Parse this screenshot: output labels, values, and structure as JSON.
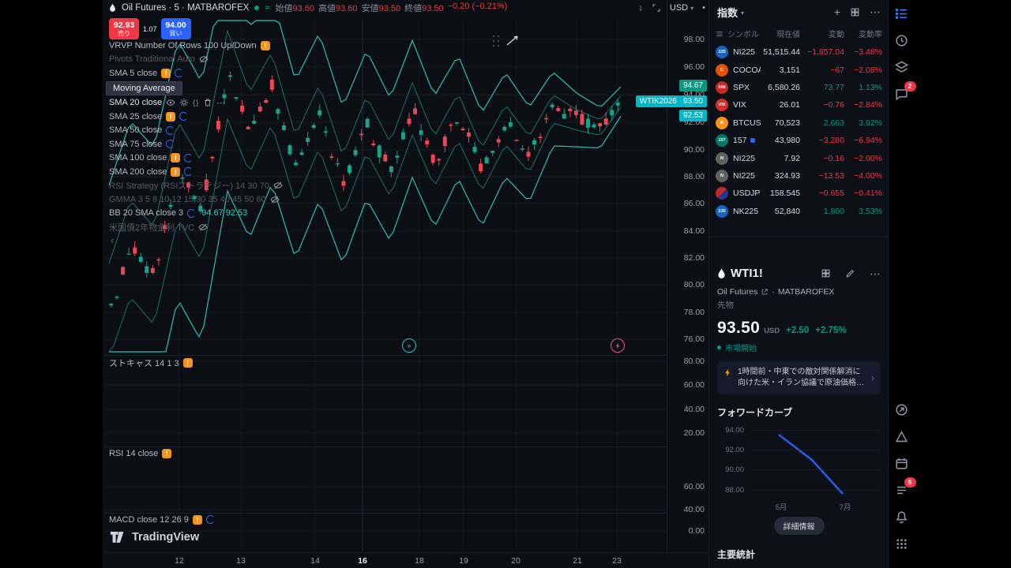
{
  "topbar": {
    "symbol_title": "Oil Futures · 5 · MATBAROFEX",
    "ohlc": {
      "open_label": "始値",
      "open": "93.60",
      "high_label": "高値",
      "high": "93.60",
      "low_label": "安値",
      "low": "93.50",
      "close_label": "終値",
      "close": "93.50",
      "change": "−0.20 (−0.21%)"
    },
    "currency": "USD"
  },
  "trade": {
    "sell_price": "92.93",
    "sell_label": "売り",
    "spread": "1.07",
    "buy_price": "94.00",
    "buy_label": "買い"
  },
  "legend": {
    "rows": [
      {
        "label": "VRVP Number Of Rows 100 Up/Down",
        "icons": [
          "alert"
        ]
      },
      {
        "label": "Pivots Traditional Auto",
        "style": "dim",
        "icons": [
          "eyeoff"
        ]
      },
      {
        "label": "SMA 5 close",
        "icons": [
          "alert",
          "spinner"
        ]
      },
      {
        "label": "Moving Average",
        "style": "highlight"
      },
      {
        "label": "SMA 20 close",
        "style": "active",
        "icons": [
          "eye",
          "gear",
          "code",
          "trash",
          "more"
        ]
      },
      {
        "label": "SMA 25 close",
        "icons": [
          "alert",
          "spinner"
        ]
      },
      {
        "label": "SMA 50 close",
        "icons": [
          "spinner"
        ]
      },
      {
        "label": "SMA 75 close",
        "icons": [
          "spinner"
        ]
      },
      {
        "label": "SMA 100 close",
        "icons": [
          "alert",
          "spinner"
        ]
      },
      {
        "label": "SMA 200 close",
        "icons": [
          "alert",
          "spinner"
        ]
      },
      {
        "label": "RSI Strategy (RSIストラテジー) 14 30 70",
        "style": "dim",
        "icons": [
          "eyeoff"
        ]
      },
      {
        "label": "GMMA 3 5 8 10 12 15 30 35 40 45 50 60",
        "style": "dim",
        "icons": [
          "eyeoff"
        ]
      },
      {
        "label": "BB 20 SMA close 3",
        "icons": [
          "spinner"
        ],
        "values": "94.67  92.53"
      },
      {
        "label": "米国債2年物金利  TVC",
        "style": "dim",
        "icons": [
          "eyeoff"
        ]
      }
    ],
    "panes": [
      {
        "label": "ストキャス 14 1 3",
        "icons": [
          "alert"
        ]
      },
      {
        "label": "RSI 14 close",
        "icons": [
          "alert"
        ]
      },
      {
        "label": "MACD close 12 26 9",
        "icons": [
          "alert",
          "spinner"
        ]
      }
    ]
  },
  "chart": {
    "price_ticks": [
      "98.00",
      "96.00",
      "94.00",
      "92.00",
      "90.00",
      "88.00",
      "86.00",
      "84.00",
      "82.00",
      "80.00",
      "78.00",
      "76.00"
    ],
    "stoch_ticks": [
      "80.00",
      "60.00",
      "40.00",
      "20.00"
    ],
    "rsi_ticks": [
      "60.00",
      "40.00"
    ],
    "macd_ticks": [
      "0.00"
    ],
    "time_ticks": [
      {
        "label": "12"
      },
      {
        "label": "13"
      },
      {
        "label": "14"
      },
      {
        "label": "16",
        "active": true
      },
      {
        "label": "18"
      },
      {
        "label": "19"
      },
      {
        "label": "20"
      },
      {
        "label": "21"
      },
      {
        "label": "23"
      }
    ],
    "labels": {
      "band_upper": "94.67",
      "contract": "WTIK2026",
      "last": "93.50",
      "band_lower": "92.53"
    },
    "colors": {
      "up": "#18a38c",
      "down": "#ef4655",
      "band": "#2dd4c8",
      "accent": "#2962ff"
    }
  },
  "logo": {
    "text": "TradingView"
  },
  "watchlist": {
    "title": "指数",
    "columns": [
      "シンボル",
      "現在値",
      "変動",
      "変動率"
    ],
    "rows": [
      {
        "icon": "225",
        "icon_bg": "#1565c0",
        "name": "NI225",
        "value": "51,515.44",
        "change": "−1,857.04",
        "pct": "−3.48%",
        "dir": "down"
      },
      {
        "icon": "C",
        "icon_bg": "#e65100",
        "name": "COCOA",
        "value": "3,151",
        "change": "−67",
        "pct": "−2.08%",
        "dir": "down"
      },
      {
        "icon": "500",
        "icon_bg": "#c62828",
        "name": "SPX",
        "value": "6,580.26",
        "change": "73.77",
        "pct": "1.13%",
        "dir": "up"
      },
      {
        "icon": "VIX",
        "icon_bg": "#d32f2f",
        "name": "VIX",
        "value": "26.01",
        "change": "−0.76",
        "pct": "−2.84%",
        "dir": "down"
      },
      {
        "icon": "B",
        "icon_bg": "#f7931a",
        "name": "BTCUSD",
        "value": "70,523",
        "change": "2,663",
        "pct": "3.92%",
        "dir": "up"
      },
      {
        "icon": "157",
        "icon_bg": "#00796b",
        "name": "157",
        "dot": "#2962ff",
        "value": "43,980",
        "change": "−3,280",
        "pct": "−6.94%",
        "dir": "down"
      },
      {
        "icon": "N",
        "icon_bg": "#616161",
        "name": "NI225",
        "value": "7.92",
        "change": "−0.16",
        "pct": "−2.00%",
        "dir": "down"
      },
      {
        "icon": "N",
        "icon_bg": "#616161",
        "name": "NI225",
        "value": "324.93",
        "change": "−13.53",
        "pct": "−4.00%",
        "dir": "down"
      },
      {
        "icon": "",
        "icon_bg": "linear-gradient(135deg,#c62828 50%,#283593 50%)",
        "name": "USDJPY",
        "value": "158.545",
        "change": "−0.655",
        "pct": "−0.41%",
        "dir": "down"
      },
      {
        "icon": "225",
        "icon_bg": "#1565c0",
        "name": "NK225",
        "chip": {
          "text": "先",
          "bg": "#b71c1c"
        },
        "value": "52,840",
        "change": "1,800",
        "pct": "3.53%",
        "dir": "up"
      }
    ]
  },
  "detail": {
    "symbol": "WTI1!",
    "name": "Oil Futures",
    "separator": "·",
    "exchange": "MATBAROFEX",
    "type": "先物",
    "price": "93.50",
    "currency": "USD",
    "change": "+2.50",
    "pct": "+2.75%",
    "market_status": "市場開始",
    "news": {
      "text": "1時間前・中東での敵対関係解消に向けた米・イラン協議で原油価格が8%…"
    },
    "forward_curve": {
      "title": "フォワードカーブ",
      "y_ticks": [
        "94.00",
        "92.00",
        "90.00",
        "88.00"
      ],
      "x_ticks": [
        "5月",
        "7月"
      ]
    },
    "details_button": "詳細情報",
    "stats_title": "主要統計"
  },
  "rail": {
    "chat_badge": "2",
    "notif_badge": "5"
  }
}
